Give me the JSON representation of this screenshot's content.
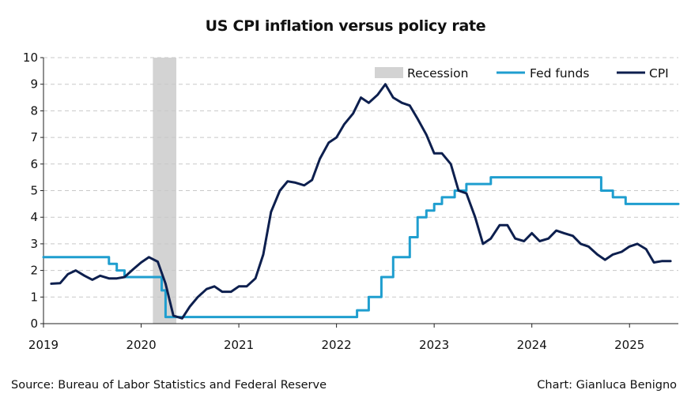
{
  "chart_data": {
    "type": "line",
    "title": "US CPI inflation versus policy rate",
    "xlabel": "",
    "ylabel": "",
    "xlim": [
      2019,
      2025.5
    ],
    "ylim": [
      0,
      10
    ],
    "y_ticks": [
      "0",
      "1",
      "2",
      "3",
      "4",
      "5",
      "6",
      "7",
      "8",
      "9",
      "10"
    ],
    "x_ticks": [
      "2019",
      "2020",
      "2021",
      "2022",
      "2023",
      "2024",
      "2025"
    ],
    "grid": "horizontal dashed",
    "legend_position": "top-right",
    "recession": {
      "name": "Recession",
      "start": 2020.12,
      "end": 2020.36,
      "color": "#d3d3d3"
    },
    "series": [
      {
        "name": "Fed funds",
        "color": "#1f9ecf",
        "step": true,
        "x": [
          2019.0,
          2019.58,
          2019.67,
          2019.75,
          2019.83,
          2020.17,
          2020.21,
          2020.25,
          2020.5,
          2021.0,
          2021.5,
          2022.0,
          2022.21,
          2022.33,
          2022.46,
          2022.58,
          2022.75,
          2022.83,
          2022.92,
          2023.0,
          2023.08,
          2023.21,
          2023.33,
          2023.46,
          2023.58,
          2024.0,
          2024.5,
          2024.71,
          2024.83,
          2024.96,
          2025.5
        ],
        "values": [
          2.5,
          2.5,
          2.25,
          2.0,
          1.75,
          1.75,
          1.25,
          0.25,
          0.25,
          0.25,
          0.25,
          0.25,
          0.5,
          1.0,
          1.75,
          2.5,
          3.25,
          4.0,
          4.25,
          4.5,
          4.75,
          5.0,
          5.25,
          5.25,
          5.5,
          5.5,
          5.5,
          5.0,
          4.75,
          4.5,
          4.5
        ]
      },
      {
        "name": "CPI",
        "color": "#0d1f4e",
        "step": false,
        "x": [
          2019.08,
          2019.17,
          2019.25,
          2019.33,
          2019.42,
          2019.5,
          2019.58,
          2019.67,
          2019.75,
          2019.83,
          2019.92,
          2020.0,
          2020.08,
          2020.17,
          2020.25,
          2020.33,
          2020.42,
          2020.5,
          2020.58,
          2020.67,
          2020.75,
          2020.83,
          2020.92,
          2021.0,
          2021.08,
          2021.17,
          2021.25,
          2021.33,
          2021.42,
          2021.5,
          2021.58,
          2021.67,
          2021.75,
          2021.83,
          2021.92,
          2022.0,
          2022.08,
          2022.17,
          2022.25,
          2022.33,
          2022.42,
          2022.5,
          2022.58,
          2022.67,
          2022.75,
          2022.83,
          2022.92,
          2023.0,
          2023.08,
          2023.17,
          2023.25,
          2023.33,
          2023.42,
          2023.5,
          2023.58,
          2023.67,
          2023.75,
          2023.83,
          2023.92,
          2024.0,
          2024.08,
          2024.17,
          2024.25,
          2024.33,
          2024.42,
          2024.5,
          2024.58,
          2024.67,
          2024.75,
          2024.83,
          2024.92,
          2025.0,
          2025.08,
          2025.17,
          2025.25,
          2025.33,
          2025.42
        ],
        "values": [
          1.5,
          1.52,
          1.86,
          2.0,
          1.8,
          1.65,
          1.8,
          1.7,
          1.7,
          1.75,
          2.05,
          2.3,
          2.5,
          2.33,
          1.5,
          0.3,
          0.2,
          0.65,
          1.0,
          1.3,
          1.4,
          1.2,
          1.2,
          1.4,
          1.4,
          1.7,
          2.6,
          4.2,
          5.0,
          5.35,
          5.3,
          5.2,
          5.4,
          6.2,
          6.8,
          7.0,
          7.5,
          7.9,
          8.5,
          8.3,
          8.6,
          9.0,
          8.5,
          8.3,
          8.2,
          7.7,
          7.1,
          6.4,
          6.4,
          6.0,
          5.0,
          4.9,
          4.0,
          3.0,
          3.2,
          3.7,
          3.7,
          3.2,
          3.1,
          3.4,
          3.1,
          3.2,
          3.5,
          3.4,
          3.3,
          3.0,
          2.9,
          2.6,
          2.4,
          2.6,
          2.7,
          2.9,
          3.0,
          2.8,
          2.3,
          2.35,
          2.35
        ]
      }
    ],
    "annotations": [
      "Source: Bureau of Labor Statistics and Federal Reserve",
      "Chart: Gianluca Benigno"
    ]
  }
}
